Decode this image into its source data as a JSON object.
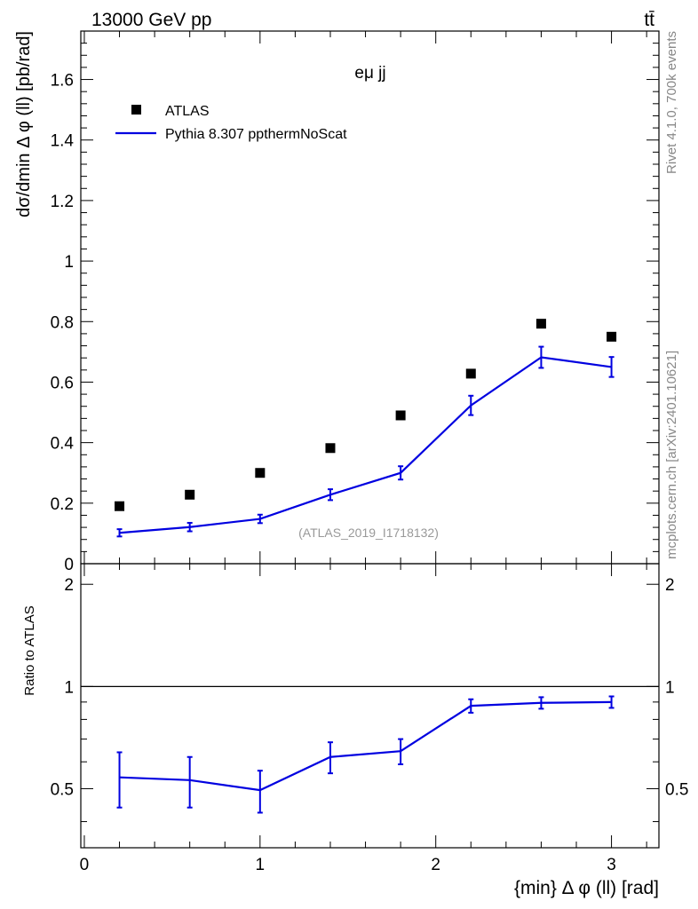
{
  "header": {
    "left": "13000 GeV pp",
    "right": "tt̄"
  },
  "side": {
    "rivet": "Rivet 4.1.0,  700k events",
    "mcplots": "mcplots.cern.ch [arXiv:2401.10621]"
  },
  "chart_data": {
    "type": "scatter",
    "title": "eμ jj",
    "analysis_label": "(ATLAS_2019_I1718132)",
    "xlabel": "{min} Δ φ (ll) [rad]",
    "ylabel": "dσ/dmin Δ φ (ll) [pb/rad]",
    "ratio_ylabel": "Ratio to ATLAS",
    "xlim": [
      -0.02,
      3.27
    ],
    "ylim": [
      0,
      1.76
    ],
    "ratio_ylim": [
      0.335,
      2.3
    ],
    "x_ticks": [
      0,
      1,
      2,
      3
    ],
    "x_tick_labels": [
      "0",
      "1",
      "2",
      "3"
    ],
    "y_ticks": [
      0,
      0.2,
      0.4,
      0.6,
      0.8,
      1,
      1.2,
      1.4,
      1.6
    ],
    "y_tick_labels": [
      "0",
      "0.2",
      "0.4",
      "0.6",
      "0.8",
      "1",
      "1.2",
      "1.4",
      "1.6"
    ],
    "ratio_ticks": [
      0.5,
      1,
      2
    ],
    "ratio_tick_labels": [
      "0.5",
      "1",
      "2"
    ],
    "x": [
      0.2,
      0.6,
      1.0,
      1.4,
      1.8,
      2.2,
      2.6,
      3.0
    ],
    "series": [
      {
        "name": "ATLAS",
        "style": "markers",
        "color": "#000000",
        "values": [
          0.19,
          0.228,
          0.3,
          0.382,
          0.49,
          0.628,
          0.793,
          0.75
        ]
      },
      {
        "name": "Pythia 8.307 ppthermNoScat",
        "style": "line",
        "color": "#0000e0",
        "values": [
          0.102,
          0.121,
          0.148,
          0.228,
          0.3,
          0.523,
          0.682,
          0.65
        ],
        "errors": [
          0.012,
          0.014,
          0.014,
          0.018,
          0.022,
          0.032,
          0.035,
          0.033
        ]
      }
    ],
    "ratio": {
      "reference": 1,
      "values": [
        0.54,
        0.53,
        0.495,
        0.62,
        0.645,
        0.877,
        0.895,
        0.9
      ],
      "errors": [
        0.1,
        0.09,
        0.07,
        0.065,
        0.055,
        0.04,
        0.035,
        0.035
      ]
    }
  }
}
